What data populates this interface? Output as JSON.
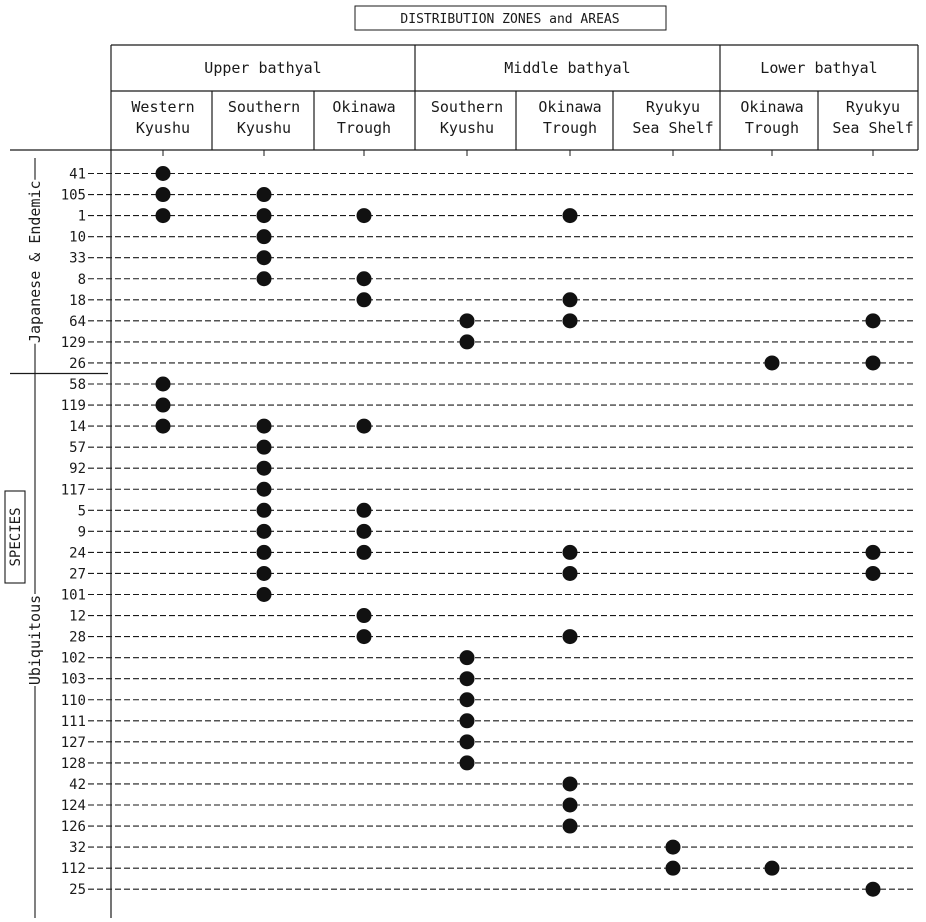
{
  "chart_data": {
    "type": "scatter",
    "title": "DISTRIBUTION ZONES and AREAS",
    "axis_label": "SPECIES",
    "zones": [
      {
        "label": "Upper bathyal",
        "areas": [
          "Western Kyushu",
          "Southern Kyushu",
          "Okinawa Trough"
        ]
      },
      {
        "label": "Middle bathyal",
        "areas": [
          "Southern Kyushu",
          "Okinawa Trough",
          "Ryukyu Sea Shelf"
        ]
      },
      {
        "label": "Lower bathyal",
        "areas": [
          "Okinawa Trough",
          "Ryukyu Sea Shelf"
        ]
      }
    ],
    "columns": [
      [
        "Western",
        "Kyushu"
      ],
      [
        "Southern",
        "Kyushu"
      ],
      [
        "Okinawa",
        "Trough"
      ],
      [
        "Southern",
        "Kyushu"
      ],
      [
        "Okinawa",
        "Trough"
      ],
      [
        "Ryukyu",
        "Sea Shelf"
      ],
      [
        "Okinawa",
        "Trough"
      ],
      [
        "Ryukyu",
        "Sea Shelf"
      ]
    ],
    "groups": [
      {
        "label": "Japanese & Endemic",
        "species": [
          "41",
          "105",
          "1",
          "10",
          "33",
          "8",
          "18",
          "64",
          "129",
          "26"
        ]
      },
      {
        "label": "Ubiquitous",
        "species": [
          "58",
          "119",
          "14",
          "57",
          "92",
          "117",
          "5",
          "9",
          "24",
          "27",
          "101",
          "12",
          "28",
          "102",
          "103",
          "110",
          "111",
          "127",
          "128",
          "42",
          "124",
          "126",
          "32",
          "112",
          "25"
        ]
      }
    ],
    "occurrences": {
      "41": [
        0
      ],
      "105": [
        0,
        1
      ],
      "1": [
        0,
        1,
        2,
        4
      ],
      "10": [
        1
      ],
      "33": [
        1
      ],
      "8": [
        1,
        2
      ],
      "18": [
        2,
        4
      ],
      "64": [
        3,
        4,
        7
      ],
      "129": [
        3
      ],
      "26": [
        6,
        7
      ],
      "58": [
        0
      ],
      "119": [
        0
      ],
      "14": [
        0,
        1,
        2
      ],
      "57": [
        1
      ],
      "92": [
        1
      ],
      "117": [
        1
      ],
      "5": [
        1,
        2
      ],
      "9": [
        1,
        2
      ],
      "24": [
        1,
        2,
        4,
        7
      ],
      "27": [
        1,
        4,
        7
      ],
      "101": [
        1
      ],
      "12": [
        2
      ],
      "28": [
        2,
        4
      ],
      "102": [
        3
      ],
      "103": [
        3
      ],
      "110": [
        3
      ],
      "111": [
        3
      ],
      "127": [
        3
      ],
      "128": [
        3
      ],
      "42": [
        4
      ],
      "124": [
        4
      ],
      "126": [
        4
      ],
      "32": [
        5
      ],
      "112": [
        5,
        6
      ],
      "25": [
        7
      ]
    }
  }
}
